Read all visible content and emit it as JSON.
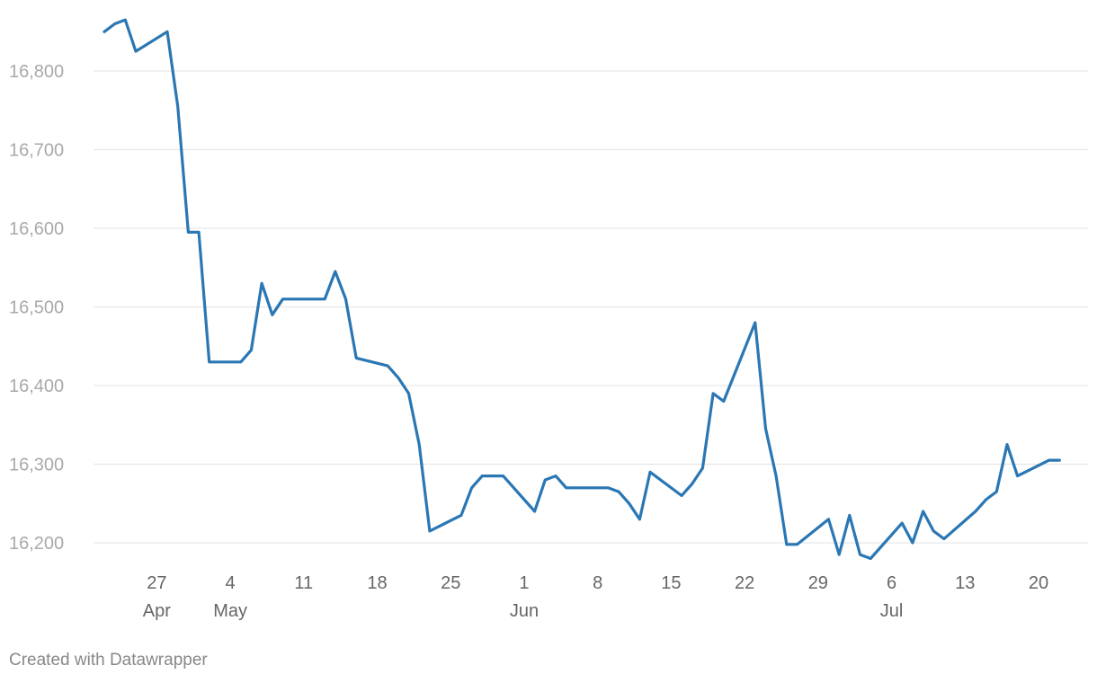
{
  "colors": {
    "series": "#2a77b4"
  },
  "footer": {
    "credit": "Created with Datawrapper"
  },
  "chart_data": {
    "type": "line",
    "title": "",
    "xlabel": "",
    "ylabel": "",
    "ylim": [
      16150,
      16880
    ],
    "yticks": [
      16200,
      16300,
      16400,
      16500,
      16600,
      16700,
      16800
    ],
    "ytick_labels": [
      "16,200",
      "16,300",
      "16,400",
      "16,500",
      "16,600",
      "16,700",
      "16,800"
    ],
    "xlim": [
      "2024-04-22",
      "2024-07-23"
    ],
    "xticks": [
      {
        "date": "2024-04-27",
        "label": "27",
        "month": "Apr"
      },
      {
        "date": "2024-05-04",
        "label": "4",
        "month": "May"
      },
      {
        "date": "2024-05-11",
        "label": "11",
        "month": ""
      },
      {
        "date": "2024-05-18",
        "label": "18",
        "month": ""
      },
      {
        "date": "2024-05-25",
        "label": "25",
        "month": ""
      },
      {
        "date": "2024-06-01",
        "label": "1",
        "month": "Jun"
      },
      {
        "date": "2024-06-08",
        "label": "8",
        "month": ""
      },
      {
        "date": "2024-06-15",
        "label": "15",
        "month": ""
      },
      {
        "date": "2024-06-22",
        "label": "22",
        "month": ""
      },
      {
        "date": "2024-06-29",
        "label": "29",
        "month": ""
      },
      {
        "date": "2024-07-06",
        "label": "6",
        "month": "Jul"
      },
      {
        "date": "2024-07-13",
        "label": "13",
        "month": ""
      },
      {
        "date": "2024-07-20",
        "label": "20",
        "month": ""
      }
    ],
    "grid": true,
    "legend": "none",
    "series": [
      {
        "points": [
          [
            "2024-04-22",
            16850
          ],
          [
            "2024-04-23",
            16860
          ],
          [
            "2024-04-24",
            16865
          ],
          [
            "2024-04-25",
            16825
          ],
          [
            "2024-04-28",
            16850
          ],
          [
            "2024-04-29",
            16755
          ],
          [
            "2024-04-30",
            16595
          ],
          [
            "2024-05-01",
            16595
          ],
          [
            "2024-05-02",
            16430
          ],
          [
            "2024-05-05",
            16430
          ],
          [
            "2024-05-06",
            16445
          ],
          [
            "2024-05-07",
            16530
          ],
          [
            "2024-05-08",
            16490
          ],
          [
            "2024-05-09",
            16510
          ],
          [
            "2024-05-13",
            16510
          ],
          [
            "2024-05-14",
            16545
          ],
          [
            "2024-05-15",
            16510
          ],
          [
            "2024-05-16",
            16435
          ],
          [
            "2024-05-19",
            16425
          ],
          [
            "2024-05-20",
            16410
          ],
          [
            "2024-05-21",
            16390
          ],
          [
            "2024-05-22",
            16325
          ],
          [
            "2024-05-23",
            16215
          ],
          [
            "2024-05-26",
            16235
          ],
          [
            "2024-05-27",
            16270
          ],
          [
            "2024-05-28",
            16285
          ],
          [
            "2024-05-30",
            16285
          ],
          [
            "2024-06-02",
            16240
          ],
          [
            "2024-06-03",
            16280
          ],
          [
            "2024-06-04",
            16285
          ],
          [
            "2024-06-05",
            16270
          ],
          [
            "2024-06-09",
            16270
          ],
          [
            "2024-06-10",
            16265
          ],
          [
            "2024-06-11",
            16250
          ],
          [
            "2024-06-12",
            16230
          ],
          [
            "2024-06-13",
            16290
          ],
          [
            "2024-06-16",
            16260
          ],
          [
            "2024-06-17",
            16275
          ],
          [
            "2024-06-18",
            16295
          ],
          [
            "2024-06-19",
            16390
          ],
          [
            "2024-06-20",
            16380
          ],
          [
            "2024-06-23",
            16480
          ],
          [
            "2024-06-24",
            16345
          ],
          [
            "2024-06-25",
            16285
          ],
          [
            "2024-06-26",
            16198
          ],
          [
            "2024-06-27",
            16198
          ],
          [
            "2024-06-30",
            16230
          ],
          [
            "2024-07-01",
            16185
          ],
          [
            "2024-07-02",
            16235
          ],
          [
            "2024-07-03",
            16185
          ],
          [
            "2024-07-04",
            16180
          ],
          [
            "2024-07-07",
            16225
          ],
          [
            "2024-07-08",
            16200
          ],
          [
            "2024-07-09",
            16240
          ],
          [
            "2024-07-10",
            16215
          ],
          [
            "2024-07-11",
            16205
          ],
          [
            "2024-07-14",
            16240
          ],
          [
            "2024-07-15",
            16255
          ],
          [
            "2024-07-16",
            16265
          ],
          [
            "2024-07-17",
            16325
          ],
          [
            "2024-07-18",
            16285
          ],
          [
            "2024-07-21",
            16305
          ],
          [
            "2024-07-22",
            16305
          ]
        ]
      }
    ]
  }
}
